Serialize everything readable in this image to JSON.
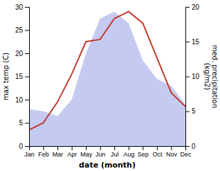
{
  "chart_data": {
    "type": "line",
    "categories": [
      "Jan",
      "Feb",
      "Mar",
      "Apr",
      "May",
      "Jun",
      "Jul",
      "Aug",
      "Sep",
      "Oct",
      "Nov",
      "Dec"
    ],
    "series": [
      {
        "type": "area",
        "color": "#c5cbf0",
        "values": [
          8.0,
          7.5,
          6.5,
          10.0,
          20.0,
          27.5,
          29.0,
          26.5,
          18.5,
          14.5,
          13.0,
          9.0
        ]
      },
      {
        "type": "line",
        "color": "#c0392b",
        "values": [
          3.5,
          5.0,
          9.5,
          15.5,
          22.5,
          23.0,
          27.5,
          29.0,
          26.5,
          19.0,
          11.5,
          8.5
        ]
      }
    ],
    "xlabel": "date (month)",
    "ylabel": "max temp (C)",
    "y2label": "med. precipitation\n(kg/m2)",
    "ylim": [
      0,
      30
    ],
    "yticks": [
      0,
      5,
      10,
      15,
      20,
      25,
      30
    ],
    "y2lim": [
      0,
      20
    ],
    "y2ticks": [
      0,
      5,
      10,
      15,
      20
    ]
  }
}
